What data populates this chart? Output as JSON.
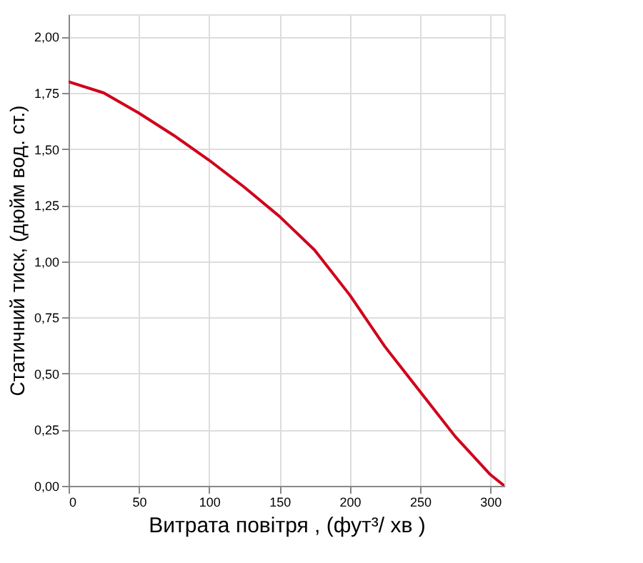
{
  "chart_data": {
    "type": "line",
    "xlabel": "Витрата повітря , (фут³/  хв )",
    "ylabel": "Статичний тиск, (дюйм вод. ст.)",
    "x": [
      0,
      25,
      50,
      75,
      100,
      125,
      150,
      175,
      200,
      225,
      250,
      275,
      300,
      310
    ],
    "series": [
      {
        "color": "#d0021b",
        "values": [
          1.8,
          1.75,
          1.66,
          1.56,
          1.45,
          1.33,
          1.2,
          1.05,
          0.85,
          0.62,
          0.42,
          0.22,
          0.05,
          0.0
        ]
      }
    ],
    "xlim": [
      0,
      310
    ],
    "xticks": [
      0,
      50,
      100,
      150,
      200,
      250,
      300
    ],
    "ylim": [
      0,
      2.1
    ],
    "yticks": [
      {
        "value": 0,
        "label": "0,00"
      },
      {
        "value": 0.25,
        "label": "0,25"
      },
      {
        "value": 0.5,
        "label": "0,50"
      },
      {
        "value": 0.75,
        "label": "0,75"
      },
      {
        "value": 1.0,
        "label": "1,00"
      },
      {
        "value": 1.25,
        "label": "1,25"
      },
      {
        "value": 1.5,
        "label": "1,50"
      },
      {
        "value": 1.75,
        "label": "1,75"
      },
      {
        "value": 2.0,
        "label": "2,00"
      }
    ],
    "grid": true,
    "marker": "none",
    "line_style": "solid"
  }
}
